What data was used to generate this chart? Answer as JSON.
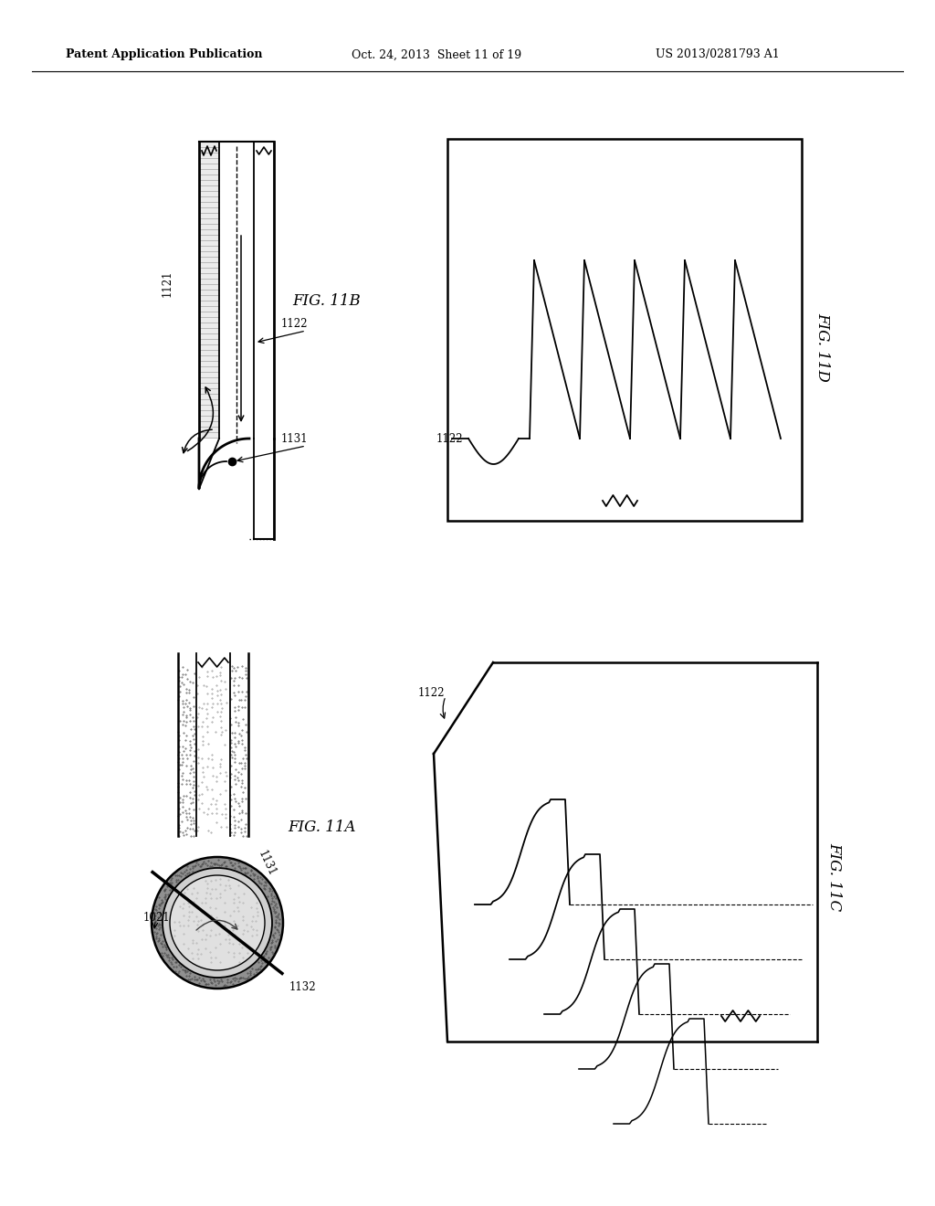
{
  "bg": "#ffffff",
  "lc": "#000000",
  "header_left": "Patent Application Publication",
  "header_center": "Oct. 24, 2013  Sheet 11 of 19",
  "header_right": "US 2013/0281793 A1",
  "gray_stipple": "#c0c0c0",
  "gray_wall": "#b8b8b8",
  "gray_inner": "#d8d8d8"
}
